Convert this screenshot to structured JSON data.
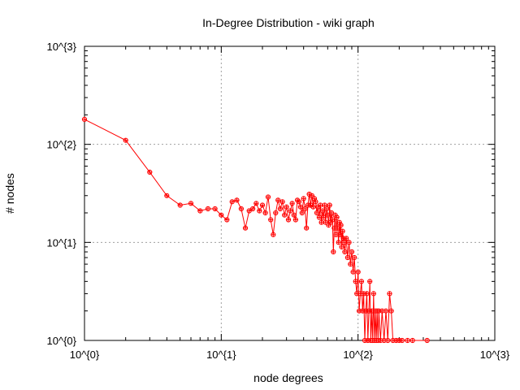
{
  "chart_data": {
    "type": "line",
    "title": "In-Degree Distribution - wiki graph",
    "xlabel": "node degrees",
    "ylabel": "# nodes",
    "x_scale": "log",
    "y_scale": "log",
    "xlim": [
      1,
      1000
    ],
    "ylim": [
      1,
      1000
    ],
    "x_ticks": [
      {
        "value": 1,
        "label": "10^{0}"
      },
      {
        "value": 10,
        "label": "10^{1}"
      },
      {
        "value": 100,
        "label": "10^{2}"
      },
      {
        "value": 1000,
        "label": "10^{3}"
      }
    ],
    "y_ticks": [
      {
        "value": 1,
        "label": "10^{0}"
      },
      {
        "value": 10,
        "label": "10^{1}"
      },
      {
        "value": 100,
        "label": "10^{2}"
      },
      {
        "value": 1000,
        "label": "10^{3}"
      }
    ],
    "grid": true,
    "series": [
      {
        "color": "#ff0000",
        "marker": "open-circle-plus",
        "points": [
          [
            1,
            180
          ],
          [
            2,
            110
          ],
          [
            3,
            52
          ],
          [
            4,
            30
          ],
          [
            5,
            24
          ],
          [
            6,
            25
          ],
          [
            7,
            21
          ],
          [
            8,
            22
          ],
          [
            9,
            22
          ],
          [
            10,
            19
          ],
          [
            11,
            17
          ],
          [
            12,
            26
          ],
          [
            13,
            27
          ],
          [
            14,
            22
          ],
          [
            15,
            14
          ],
          [
            16,
            21
          ],
          [
            17,
            22
          ],
          [
            18,
            25
          ],
          [
            19,
            21
          ],
          [
            20,
            24
          ],
          [
            21,
            20
          ],
          [
            22,
            29
          ],
          [
            23,
            17
          ],
          [
            24,
            12
          ],
          [
            25,
            20
          ],
          [
            26,
            27
          ],
          [
            27,
            22
          ],
          [
            28,
            26
          ],
          [
            29,
            19
          ],
          [
            30,
            23
          ],
          [
            31,
            17
          ],
          [
            32,
            21
          ],
          [
            33,
            25
          ],
          [
            34,
            19
          ],
          [
            35,
            17
          ],
          [
            36,
            27
          ],
          [
            37,
            26
          ],
          [
            38,
            23
          ],
          [
            39,
            20
          ],
          [
            40,
            28
          ],
          [
            41,
            22
          ],
          [
            42,
            14
          ],
          [
            43,
            24
          ],
          [
            44,
            31
          ],
          [
            45,
            24
          ],
          [
            46,
            30
          ],
          [
            47,
            23
          ],
          [
            48,
            28
          ],
          [
            49,
            26
          ],
          [
            50,
            20
          ],
          [
            51,
            23
          ],
          [
            52,
            18
          ],
          [
            53,
            24
          ],
          [
            54,
            16
          ],
          [
            55,
            21
          ],
          [
            56,
            18
          ],
          [
            57,
            24
          ],
          [
            58,
            16
          ],
          [
            59,
            22
          ],
          [
            60,
            19
          ],
          [
            61,
            15
          ],
          [
            62,
            24
          ],
          [
            63,
            16
          ],
          [
            64,
            20
          ],
          [
            65,
            17
          ],
          [
            66,
            8
          ],
          [
            67,
            14
          ],
          [
            68,
            19
          ],
          [
            69,
            12
          ],
          [
            70,
            18
          ],
          [
            71,
            14
          ],
          [
            72,
            10
          ],
          [
            73,
            16
          ],
          [
            74,
            12
          ],
          [
            75,
            15
          ],
          [
            76,
            9
          ],
          [
            77,
            13
          ],
          [
            78,
            11
          ],
          [
            79,
            10
          ],
          [
            80,
            8
          ],
          [
            82,
            11
          ],
          [
            84,
            7
          ],
          [
            86,
            10
          ],
          [
            88,
            6
          ],
          [
            90,
            8
          ],
          [
            92,
            5
          ],
          [
            94,
            7
          ],
          [
            96,
            4
          ],
          [
            98,
            3
          ],
          [
            100,
            5
          ],
          [
            102,
            2
          ],
          [
            104,
            3
          ],
          [
            106,
            4
          ],
          [
            108,
            2
          ],
          [
            110,
            3
          ],
          [
            112,
            1
          ],
          [
            114,
            2
          ],
          [
            116,
            3
          ],
          [
            118,
            1
          ],
          [
            120,
            2
          ],
          [
            122,
            4
          ],
          [
            124,
            1
          ],
          [
            126,
            2
          ],
          [
            128,
            1
          ],
          [
            130,
            3
          ],
          [
            132,
            1
          ],
          [
            134,
            2
          ],
          [
            136,
            1
          ],
          [
            138,
            2
          ],
          [
            140,
            1
          ],
          [
            142,
            2
          ],
          [
            146,
            1
          ],
          [
            150,
            2
          ],
          [
            155,
            1
          ],
          [
            160,
            2
          ],
          [
            165,
            1
          ],
          [
            170,
            3
          ],
          [
            175,
            2
          ],
          [
            180,
            1
          ],
          [
            190,
            1
          ],
          [
            200,
            1
          ],
          [
            210,
            1
          ],
          [
            230,
            1
          ],
          [
            250,
            1
          ],
          [
            320,
            1
          ]
        ]
      }
    ]
  }
}
